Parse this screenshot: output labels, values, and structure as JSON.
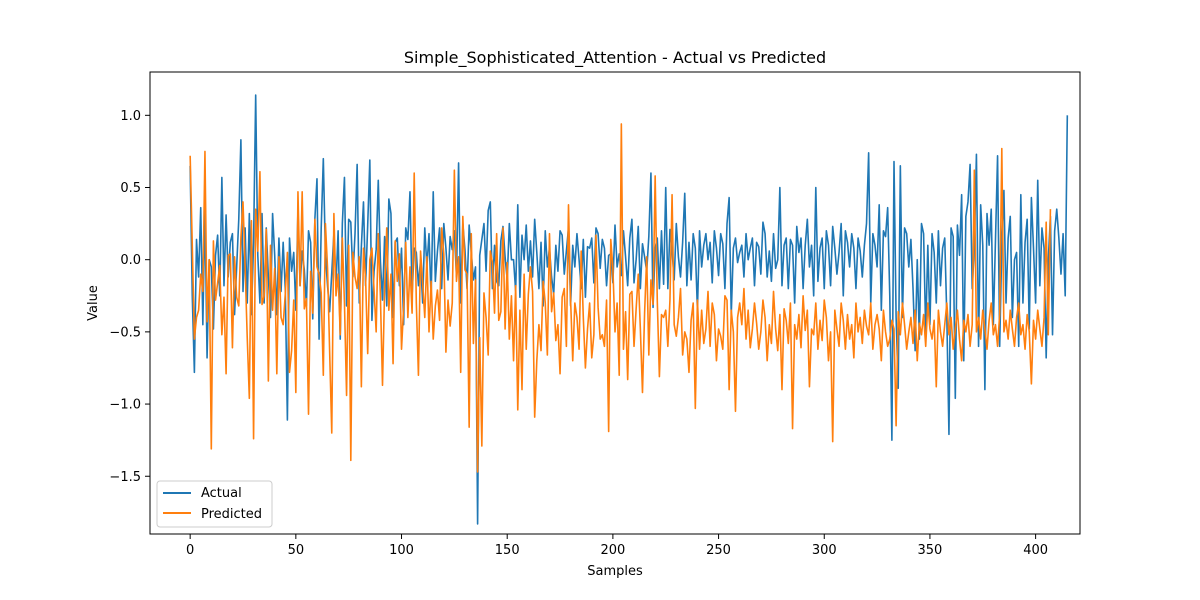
{
  "chart_data": {
    "type": "line",
    "title": "Simple_Sophisticated_Attention - Actual vs Predicted",
    "xlabel": "Samples",
    "ylabel": "Value",
    "xlim": [
      -19,
      421
    ],
    "ylim": [
      -1.9,
      1.3
    ],
    "xticks": [
      0,
      50,
      100,
      150,
      200,
      250,
      300,
      350,
      400
    ],
    "yticks": [
      -1.5,
      -1.0,
      -0.5,
      0.0,
      0.5,
      1.0
    ],
    "ytick_labels": [
      "−1.5",
      "−1.0",
      "−0.5",
      "0.0",
      "0.5",
      "1.0"
    ],
    "grid": false,
    "legend_position": "lower-left",
    "series": [
      {
        "name": "Actual",
        "color": "#1f77b4",
        "values": [
          0.65,
          -0.25,
          -0.78,
          0.14,
          -0.12,
          0.36,
          -0.45,
          0.36,
          -0.68,
          0.0,
          -0.05,
          -0.48,
          0.03,
          0.17,
          -0.25,
          0.57,
          -0.18,
          0.31,
          -0.12,
          0.12,
          0.18,
          -0.38,
          -0.05,
          0.28,
          0.83,
          -0.22,
          0.22,
          -0.3,
          0.32,
          -0.38,
          0.12,
          1.14,
          0.03,
          -0.3,
          0.32,
          -0.3,
          0.22,
          -0.12,
          -0.4,
          0.32,
          0.03,
          -0.38,
          0.15,
          -0.22,
          0.12,
          -0.2,
          -1.11,
          0.15,
          -0.08,
          0.05,
          -0.35,
          0.35,
          -0.18,
          0.06,
          -0.07,
          -0.32,
          0.2,
          0.12,
          -0.41,
          0.28,
          0.56,
          -0.55,
          0.22,
          0.7,
          0.03,
          -0.18,
          -0.36,
          -0.09,
          0.18,
          -0.18,
          0.2,
          -0.55,
          0.25,
          0.57,
          -0.32,
          0.28,
          0.26,
          -0.12,
          0.18,
          0.66,
          -0.3,
          0.09,
          0.4,
          -0.18,
          0.24,
          0.69,
          -0.42,
          -0.08,
          0.07,
          0.55,
          -0.01,
          -0.28,
          0.16,
          -0.32,
          0.42,
          0.32,
          -0.4,
          0.12,
          0.15,
          -0.18,
          0.08,
          -0.45,
          0.22,
          0.14,
          0.47,
          -0.25,
          0.08,
          0.05,
          -0.18,
          0.0,
          -0.3,
          0.22,
          -0.05,
          0.18,
          -0.27,
          0.47,
          -0.15,
          0.06,
          0.22,
          -0.2,
          0.25,
          0.08,
          -0.14,
          0.16,
          0.07,
          0.2,
          -0.12,
          0.67,
          -0.3,
          0.25,
          0.07,
          -0.2,
          0.24,
          0.05,
          -0.14,
          -0.05,
          -1.83,
          0.03,
          0.14,
          0.25,
          -0.08,
          0.34,
          0.4,
          -0.2,
          0.1,
          -0.15,
          -0.18,
          0.13,
          0.23,
          0.02,
          -0.14,
          0.25,
          0.0,
          0.0,
          -0.22,
          0.38,
          -0.26,
          0.17,
          0.0,
          0.24,
          -0.08,
          0.13,
          -0.12,
          0.28,
          0.05,
          -0.2,
          0.12,
          -0.32,
          0.2,
          -0.05,
          0.08,
          -0.12,
          -0.24,
          0.1,
          -0.08,
          0.2,
          0.17,
          -0.1,
          0.06,
          0.22,
          -0.32,
          0.1,
          -0.05,
          0.18,
          0.0,
          -0.2,
          0.14,
          -0.26,
          0.09,
          0.08,
          0.15,
          -0.16,
          0.22,
          0.18,
          -0.06,
          0.14,
          0.08,
          -0.18,
          0.03,
          0.04,
          -0.16,
          0.24,
          -0.05,
          0.04,
          -0.11,
          0.2,
          0.02,
          -0.18,
          0.15,
          0.28,
          -0.16,
          0.0,
          0.23,
          -0.2,
          0.11,
          0.02,
          -0.08,
          0.16,
          0.6,
          -0.33,
          0.08,
          0.15,
          -0.2,
          0.2,
          -0.17,
          0.5,
          -0.2,
          0.21,
          0.06,
          -0.14,
          0.25,
          0.02,
          -0.12,
          0.12,
          0.46,
          -0.18,
          0.12,
          -0.14,
          0.18,
          0.08,
          -0.35,
          0.2,
          -0.05,
          0.1,
          0.18,
          0.0,
          0.12,
          -0.16,
          0.2,
          0.08,
          -0.11,
          0.18,
          0.11,
          -0.2,
          0.25,
          0.43,
          -0.38,
          0.08,
          0.15,
          -0.02,
          0.05,
          0.1,
          -0.12,
          0.18,
          0.0,
          0.08,
          0.15,
          -0.18,
          0.12,
          0.09,
          -0.1,
          0.26,
          0.18,
          -0.12,
          0.06,
          -0.15,
          0.18,
          -0.06,
          0.0,
          0.5,
          -0.18,
          0.1,
          0.15,
          -0.2,
          0.14,
          0.1,
          -0.3,
          0.23,
          0.05,
          0.15,
          -0.2,
          0.1,
          0.28,
          -0.05,
          0.1,
          -0.25,
          0.5,
          -0.15,
          0.08,
          0.15,
          -0.2,
          0.2,
          0.1,
          -0.18,
          0.23,
          0.08,
          -0.1,
          0.05,
          0.25,
          -0.25,
          0.2,
          0.12,
          -0.05,
          0.18,
          0.08,
          -0.2,
          0.15,
          0.06,
          -0.12,
          0.1,
          0.25,
          0.74,
          -0.3,
          0.18,
          0.1,
          -0.05,
          0.38,
          -0.35,
          0.2,
          0.16,
          0.36,
          -0.25,
          -1.25,
          0.68,
          -0.4,
          -0.89,
          0.65,
          -0.4,
          0.22,
          0.18,
          -0.05,
          0.14,
          -0.2,
          -0.63,
          0.0,
          -0.55,
          0.25,
          0.18,
          -0.5,
          0.1,
          -0.45,
          0.18,
          0.05,
          -0.3,
          0.2,
          -0.18,
          0.08,
          0.15,
          -0.4,
          -1.21,
          0.22,
          0.16,
          -0.96,
          0.24,
          0.03,
          0.45,
          -0.7,
          0.3,
          0.4,
          0.66,
          -0.2,
          0.08,
          0.73,
          -0.6,
          0.38,
          0.1,
          -0.9,
          0.32,
          0.1,
          0.35,
          -0.45,
          0.13,
          0.72,
          -0.6,
          0.1,
          0.48,
          -0.3,
          0.15,
          0.3,
          -0.4,
          0.0,
          0.05,
          -0.6,
          0.45,
          -0.3,
          0.12,
          0.28,
          -0.48,
          0.43,
          0.08,
          -0.3,
          0.55,
          -0.18,
          0.22,
          0.08,
          -0.68,
          0.0,
          0.3,
          -0.52,
          0.2,
          0.35,
          0.15,
          -0.1,
          0.18,
          -0.25,
          1.0
        ]
      },
      {
        "name": "Predicted",
        "color": "#ff7f0e",
        "values": [
          0.72,
          0.1,
          -0.55,
          -0.4,
          -0.35,
          -0.1,
          -0.22,
          0.75,
          -0.43,
          0.0,
          -1.31,
          0.13,
          -0.28,
          -0.16,
          -0.04,
          -0.52,
          -0.26,
          -0.79,
          0.03,
          0.04,
          -0.61,
          0.02,
          -0.26,
          -0.32,
          0.15,
          0.4,
          -0.05,
          -0.54,
          -0.96,
          0.27,
          -1.24,
          0.35,
          0.06,
          0.61,
          -0.31,
          -0.25,
          0.21,
          -0.84,
          0.1,
          -0.35,
          -0.06,
          -0.79,
          0.02,
          -0.4,
          -0.45,
          -0.24,
          0.05,
          -0.78,
          -0.63,
          -0.28,
          -0.92,
          0.47,
          -0.18,
          0.47,
          -0.34,
          -0.27,
          -1.07,
          -0.08,
          -0.37,
          0.28,
          -0.05,
          -0.1,
          -0.23,
          -0.8,
          0.25,
          -0.06,
          -0.64,
          -1.2,
          0.32,
          -0.25,
          -0.1,
          -0.52,
          0.15,
          -0.3,
          -0.94,
          0.1,
          -1.39,
          0.05,
          -0.12,
          -0.2,
          0.02,
          -0.88,
          0.08,
          -0.13,
          -0.65,
          0.0,
          0.08,
          -0.21,
          -0.5,
          0.18,
          -0.25,
          -0.87,
          -0.2,
          0.22,
          -0.35,
          -0.1,
          -0.72,
          0.13,
          -0.15,
          0.04,
          -0.62,
          -0.33,
          0.12,
          -0.4,
          -0.05,
          -0.37,
          0.6,
          -0.3,
          -0.8,
          0.06,
          -0.16,
          -0.4,
          0.02,
          -0.5,
          -0.15,
          -0.55,
          -0.32,
          -0.21,
          -0.42,
          0.22,
          0.04,
          -0.64,
          -0.28,
          -0.46,
          -0.3,
          0.62,
          -0.15,
          0.02,
          -0.78,
          0.3,
          -0.07,
          -0.1,
          -1.16,
          0.18,
          -0.58,
          -0.14,
          -1.47,
          -0.54,
          -1.29,
          -0.23,
          -0.4,
          -0.66,
          0.06,
          -0.02,
          -0.37,
          0.18,
          -0.42,
          -0.36,
          0.22,
          -0.48,
          -0.02,
          -0.55,
          -0.25,
          -0.7,
          -0.18,
          -1.04,
          -0.35,
          -0.9,
          -0.1,
          -0.62,
          -0.24,
          -0.05,
          -0.22,
          -1.09,
          -0.7,
          -0.45,
          -0.63,
          -0.15,
          -0.3,
          -0.66,
          0.18,
          -0.36,
          -0.23,
          -0.56,
          -0.45,
          -0.79,
          -0.26,
          -0.2,
          -0.6,
          0.38,
          -0.28,
          -0.7,
          -0.3,
          -0.4,
          -0.62,
          0.06,
          -0.4,
          -0.75,
          -0.48,
          -0.3,
          -0.68,
          -0.52,
          0.17,
          -0.33,
          -0.55,
          -0.52,
          -0.6,
          -0.28,
          -1.19,
          0.14,
          -0.06,
          -0.5,
          -0.3,
          -0.8,
          0.94,
          -0.62,
          -0.36,
          -0.83,
          -0.24,
          -0.22,
          -0.6,
          -0.34,
          -0.1,
          -0.48,
          -0.92,
          -0.37,
          0.02,
          -0.66,
          -0.14,
          -0.31,
          0.58,
          -0.28,
          -0.81,
          -0.38,
          -0.4,
          -0.35,
          -0.6,
          -0.28,
          0.45,
          -0.45,
          -0.53,
          -0.4,
          -0.2,
          -0.66,
          -0.5,
          -0.55,
          -0.78,
          -0.42,
          -0.3,
          -1.03,
          -0.28,
          -0.62,
          -0.35,
          -0.58,
          -0.48,
          -0.22,
          -0.6,
          -0.3,
          -0.38,
          -0.7,
          -0.48,
          -0.53,
          -0.62,
          -0.25,
          -0.28,
          -0.9,
          -0.35,
          -0.5,
          -1.05,
          -0.4,
          -0.3,
          -0.45,
          -0.2,
          -0.55,
          -0.35,
          -0.61,
          -0.48,
          -0.3,
          -0.44,
          -0.62,
          -0.5,
          -0.28,
          -0.4,
          -0.7,
          -0.45,
          -0.58,
          -0.22,
          -0.48,
          -0.63,
          -0.38,
          -0.9,
          -0.34,
          -0.42,
          -0.58,
          -0.3,
          -1.17,
          -0.45,
          -0.55,
          -0.38,
          -0.61,
          -0.25,
          -0.49,
          -0.35,
          -0.88,
          -0.48,
          -0.52,
          -0.3,
          -0.62,
          -0.42,
          -0.56,
          -0.28,
          -0.4,
          -0.7,
          -0.5,
          -1.26,
          -0.35,
          -0.48,
          -0.6,
          -0.3,
          -0.42,
          -0.62,
          -0.38,
          -0.55,
          -0.45,
          -0.68,
          -0.3,
          -0.5,
          -0.4,
          -0.58,
          -0.35,
          -0.46,
          -0.52,
          -0.3,
          -0.62,
          -0.45,
          -0.38,
          -0.48,
          -0.7,
          -0.35,
          -0.5,
          -0.6,
          -0.55,
          -0.42,
          -0.48,
          -1.15,
          -0.36,
          -0.52,
          -0.3,
          -0.45,
          -0.62,
          -0.5,
          -0.4,
          -0.58,
          -0.35,
          -0.7,
          -0.44,
          -0.52,
          -0.38,
          -0.6,
          -0.3,
          -0.48,
          -0.55,
          -0.42,
          -0.88,
          -0.35,
          -0.5,
          -0.6,
          -0.45,
          -0.3,
          -0.52,
          -0.4,
          -0.62,
          -0.48,
          -0.35,
          -0.55,
          -0.7,
          -0.42,
          -0.5,
          -0.38,
          -0.6,
          -0.45,
          0.62,
          -0.5,
          -0.4,
          -0.55,
          -0.35,
          -0.48,
          -0.62,
          -0.42,
          -0.3,
          -0.52,
          -0.45,
          -0.6,
          -0.38,
          0.77,
          -0.5,
          -0.42,
          -0.55,
          -0.35,
          -0.48,
          -0.6,
          -0.4,
          -0.3,
          -0.52,
          -0.45,
          -0.62,
          -0.38,
          -0.5,
          -0.86,
          -0.42,
          -0.55,
          -0.35,
          -0.48,
          -0.6,
          -0.4,
          0.26,
          -0.52,
          0.35
        ]
      }
    ]
  }
}
